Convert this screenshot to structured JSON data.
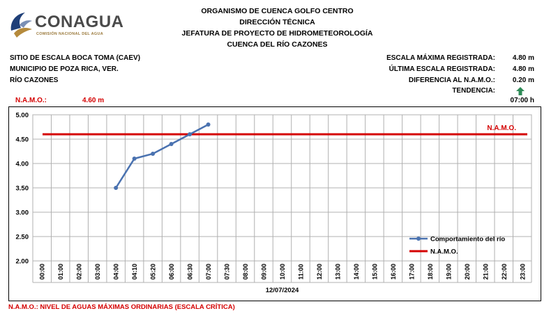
{
  "logo": {
    "name": "CONAGUA",
    "subtitle": "COMISIÓN NACIONAL DEL AGUA"
  },
  "header": {
    "line1": "ORGANISMO DE CUENCA GOLFO CENTRO",
    "line2": "DIRECCIÓN TÉCNICA",
    "line3": "JEFATURA DE PROYECTO DE HIDROMETEOROLOGÍA",
    "line4": "CUENCA DEL RÍO CAZONES"
  },
  "site": {
    "line1": "SITIO DE ESCALA BOCA TOMA (CAEV)",
    "line2": "MUNICIPIO DE POZA RICA, VER.",
    "line3": "RÍO CAZONES"
  },
  "stats": {
    "max_label": "ESCALA MÁXIMA REGISTRADA:",
    "max_value": "4.80 m",
    "last_label": "ÚLTIMA ESCALA REGISTRADA:",
    "last_value": "4.80 m",
    "diff_label": "DIFERENCIA AL N.A.M.O.:",
    "diff_value": "0.20 m",
    "trend_label": "TENDENCIA:",
    "trend_icon": "arrow-up-icon",
    "trend_color": "#2e8b57",
    "time": "07:00 h"
  },
  "namo": {
    "label": "N.A.M.O.:",
    "value": "4.60 m"
  },
  "footer": "N.A.M.O.: NIVEL DE AGUAS MÁXIMAS ORDINARIAS (ESCALA CRÍTICA)",
  "chart_data": {
    "type": "line",
    "categories": [
      "00:00",
      "01:00",
      "02:00",
      "03:00",
      "04:00",
      "04:10",
      "05:20",
      "06:00",
      "06:30",
      "07:00",
      "07:30",
      "08:00",
      "09:00",
      "10:00",
      "11:00",
      "12:00",
      "13:00",
      "14:00",
      "15:00",
      "16:00",
      "17:00",
      "18:00",
      "19:00",
      "20:00",
      "21:00",
      "22:00",
      "23:00"
    ],
    "series": [
      {
        "name": "Comportamiento del río",
        "color": "#4a72b0",
        "values": [
          null,
          null,
          null,
          null,
          3.5,
          4.1,
          4.2,
          4.4,
          4.6,
          4.8,
          null,
          null,
          null,
          null,
          null,
          null,
          null,
          null,
          null,
          null,
          null,
          null,
          null,
          null,
          null,
          null,
          null
        ]
      },
      {
        "name": "N.A.M.O.",
        "color": "#d40000",
        "constant": 4.6,
        "label": "N.A.M.O."
      }
    ],
    "yticks": [
      "2.00",
      "2.50",
      "3.00",
      "3.50",
      "4.00",
      "4.50",
      "5.00"
    ],
    "ylim": [
      2.0,
      5.0
    ],
    "xlabel": "12/07/2024",
    "grid": true,
    "legend": "bottom-right"
  }
}
